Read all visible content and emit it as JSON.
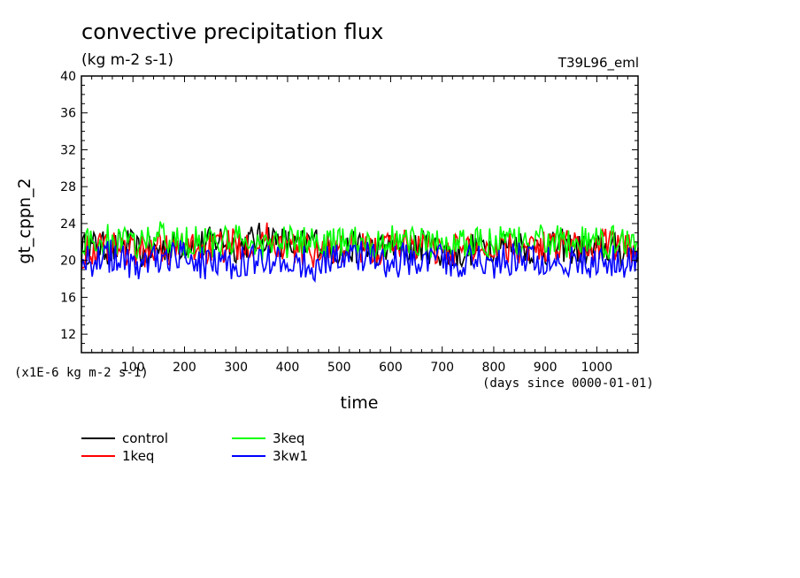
{
  "chart_data": {
    "type": "line",
    "title": "convective precipitation flux",
    "units": "(kg m-2 s-1)",
    "run_id": "T39L96_eml",
    "ylabel": "gt_cppn_2",
    "xlabel": "time",
    "y_scale_label": "(x1E-6 kg m-2 s-1)",
    "x_units_label": "(days since 0000-01-01)",
    "xlim": [
      0,
      1080
    ],
    "ylim": [
      10,
      40
    ],
    "xticks": [
      100,
      200,
      300,
      400,
      500,
      600,
      700,
      800,
      900,
      1000
    ],
    "yticks": [
      12,
      16,
      20,
      24,
      28,
      32,
      36,
      40
    ],
    "grid": false,
    "legend_position": "bottom-left",
    "series": [
      {
        "name": "control",
        "color": "#000000",
        "x": [
          0,
          30,
          60,
          90,
          120,
          150,
          180,
          210,
          240,
          270,
          300,
          330,
          360,
          390,
          420,
          450,
          480,
          510,
          540,
          570,
          600,
          630,
          660,
          690,
          720,
          750,
          780,
          810,
          840,
          870,
          900,
          930,
          960,
          990,
          1020,
          1050,
          1080
        ],
        "values": [
          21.2,
          21.6,
          21.1,
          21.8,
          20.6,
          21.3,
          21.5,
          22.0,
          21.7,
          22.4,
          21.5,
          22.1,
          22.6,
          22.0,
          21.4,
          22.3,
          21.2,
          21.0,
          21.5,
          21.1,
          21.4,
          20.9,
          21.6,
          21.2,
          20.6,
          21.0,
          21.7,
          21.5,
          21.9,
          21.3,
          21.1,
          21.6,
          21.2,
          21.0,
          21.3,
          21.1,
          21.4
        ]
      },
      {
        "name": "1keq",
        "color": "#ff0000",
        "x": [
          0,
          30,
          60,
          90,
          120,
          150,
          180,
          210,
          240,
          270,
          300,
          330,
          360,
          390,
          420,
          450,
          480,
          510,
          540,
          570,
          600,
          630,
          660,
          690,
          720,
          750,
          780,
          810,
          840,
          870,
          900,
          930,
          960,
          990,
          1020,
          1050,
          1080
        ],
        "values": [
          20.8,
          21.3,
          21.9,
          21.1,
          20.9,
          21.5,
          21.0,
          21.6,
          21.2,
          21.4,
          21.8,
          22.0,
          22.4,
          21.6,
          21.2,
          21.0,
          21.4,
          21.1,
          21.3,
          21.0,
          21.6,
          22.0,
          21.5,
          21.2,
          21.1,
          21.4,
          21.2,
          21.8,
          21.5,
          21.7,
          21.4,
          22.1,
          21.6,
          21.2,
          21.8,
          21.5,
          21.3
        ]
      },
      {
        "name": "3keq",
        "color": "#00ff00",
        "x": [
          0,
          30,
          60,
          90,
          120,
          150,
          180,
          210,
          240,
          270,
          300,
          330,
          360,
          390,
          420,
          450,
          480,
          510,
          540,
          570,
          600,
          630,
          660,
          690,
          720,
          750,
          780,
          810,
          840,
          870,
          900,
          930,
          960,
          990,
          1020,
          1050,
          1080
        ],
        "values": [
          22.0,
          21.8,
          22.3,
          21.7,
          22.1,
          22.5,
          22.0,
          21.9,
          22.3,
          21.8,
          22.1,
          21.9,
          21.6,
          22.0,
          21.8,
          22.2,
          21.7,
          21.9,
          22.4,
          21.8,
          22.1,
          22.3,
          21.9,
          21.8,
          22.0,
          21.6,
          21.9,
          22.2,
          21.8,
          22.0,
          22.4,
          21.9,
          22.1,
          21.7,
          22.0,
          22.3,
          21.9
        ]
      },
      {
        "name": "3kw1",
        "color": "#0000ff",
        "x": [
          0,
          30,
          60,
          90,
          120,
          150,
          180,
          210,
          240,
          270,
          300,
          330,
          360,
          390,
          420,
          450,
          480,
          510,
          540,
          570,
          600,
          630,
          660,
          690,
          720,
          750,
          780,
          810,
          840,
          870,
          900,
          930,
          960,
          990,
          1020,
          1050,
          1080
        ],
        "values": [
          20.4,
          19.8,
          20.6,
          19.9,
          19.3,
          20.2,
          20.8,
          20.1,
          19.6,
          20.3,
          19.5,
          20.0,
          20.4,
          19.7,
          20.1,
          19.4,
          20.2,
          19.9,
          20.5,
          20.0,
          19.6,
          20.3,
          19.8,
          20.1,
          19.5,
          20.2,
          20.0,
          19.7,
          20.4,
          19.9,
          20.2,
          19.6,
          20.1,
          19.4,
          20.0,
          19.7,
          20.2
        ]
      }
    ]
  }
}
